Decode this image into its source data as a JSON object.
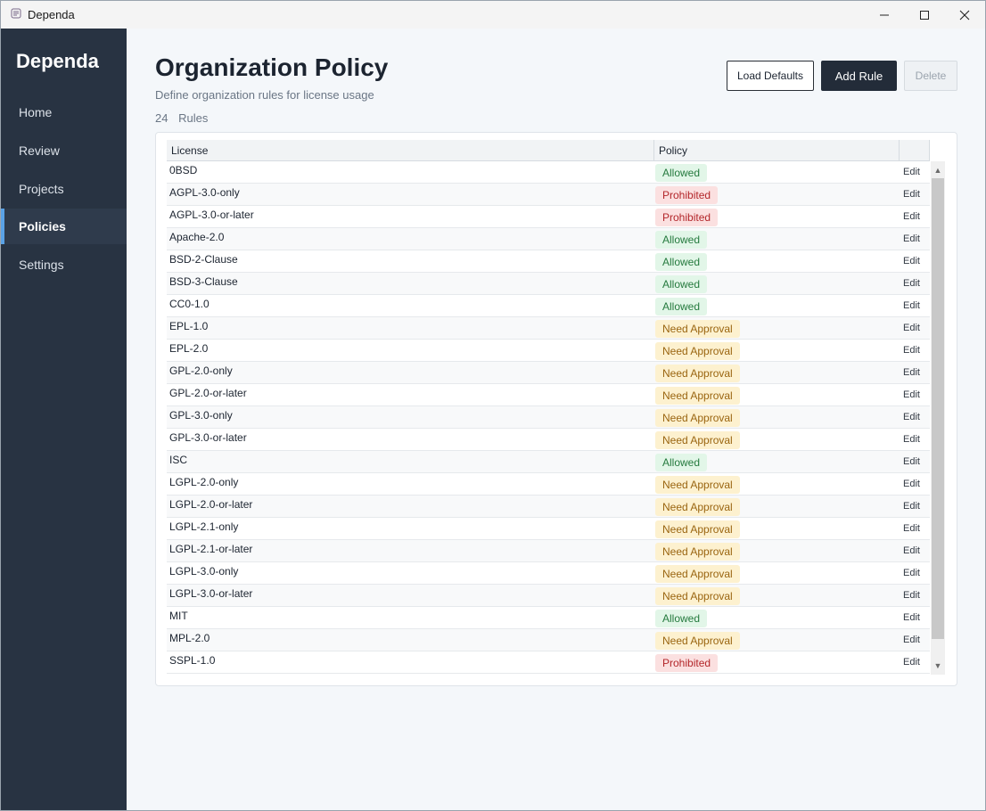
{
  "window": {
    "title": "Dependa"
  },
  "sidebar": {
    "brand": "Dependa",
    "items": [
      {
        "label": "Home",
        "active": false
      },
      {
        "label": "Review",
        "active": false
      },
      {
        "label": "Projects",
        "active": false
      },
      {
        "label": "Policies",
        "active": true
      },
      {
        "label": "Settings",
        "active": false
      }
    ]
  },
  "header": {
    "title": "Organization Policy",
    "subtitle": "Define organization rules for license usage",
    "rule_count": "24",
    "rule_count_label": "Rules"
  },
  "toolbar": {
    "load_defaults_label": "Load Defaults",
    "add_rule_label": "Add Rule",
    "delete_label": "Delete"
  },
  "table": {
    "columns": [
      "License",
      "Policy"
    ],
    "edit_label": "Edit",
    "rows": [
      {
        "license": "0BSD",
        "policy": "Allowed",
        "status": "allowed"
      },
      {
        "license": "AGPL-3.0-only",
        "policy": "Prohibited",
        "status": "prohibited"
      },
      {
        "license": "AGPL-3.0-or-later",
        "policy": "Prohibited",
        "status": "prohibited"
      },
      {
        "license": "Apache-2.0",
        "policy": "Allowed",
        "status": "allowed"
      },
      {
        "license": "BSD-2-Clause",
        "policy": "Allowed",
        "status": "allowed"
      },
      {
        "license": "BSD-3-Clause",
        "policy": "Allowed",
        "status": "allowed"
      },
      {
        "license": "CC0-1.0",
        "policy": "Allowed",
        "status": "allowed"
      },
      {
        "license": "EPL-1.0",
        "policy": "Need Approval",
        "status": "approval"
      },
      {
        "license": "EPL-2.0",
        "policy": "Need Approval",
        "status": "approval"
      },
      {
        "license": "GPL-2.0-only",
        "policy": "Need Approval",
        "status": "approval"
      },
      {
        "license": "GPL-2.0-or-later",
        "policy": "Need Approval",
        "status": "approval"
      },
      {
        "license": "GPL-3.0-only",
        "policy": "Need Approval",
        "status": "approval"
      },
      {
        "license": "GPL-3.0-or-later",
        "policy": "Need Approval",
        "status": "approval"
      },
      {
        "license": "ISC",
        "policy": "Allowed",
        "status": "allowed"
      },
      {
        "license": "LGPL-2.0-only",
        "policy": "Need Approval",
        "status": "approval"
      },
      {
        "license": "LGPL-2.0-or-later",
        "policy": "Need Approval",
        "status": "approval"
      },
      {
        "license": "LGPL-2.1-only",
        "policy": "Need Approval",
        "status": "approval"
      },
      {
        "license": "LGPL-2.1-or-later",
        "policy": "Need Approval",
        "status": "approval"
      },
      {
        "license": "LGPL-3.0-only",
        "policy": "Need Approval",
        "status": "approval"
      },
      {
        "license": "LGPL-3.0-or-later",
        "policy": "Need Approval",
        "status": "approval"
      },
      {
        "license": "MIT",
        "policy": "Allowed",
        "status": "allowed"
      },
      {
        "license": "MPL-2.0",
        "policy": "Need Approval",
        "status": "approval"
      },
      {
        "license": "SSPL-1.0",
        "policy": "Prohibited",
        "status": "prohibited"
      }
    ]
  },
  "colors": {
    "sidebar_bg": "#283342",
    "accent": "#5aa2e6",
    "primary_button": "#232c39",
    "allowed": "#257a3e",
    "prohibited": "#b3262a",
    "approval": "#9a6510"
  },
  "icons": {
    "app": "app-logo-icon",
    "minimize": "minimize-icon",
    "maximize": "maximize-icon",
    "close": "close-icon",
    "scroll_up": "chevron-up-icon",
    "scroll_down": "chevron-down-icon"
  }
}
